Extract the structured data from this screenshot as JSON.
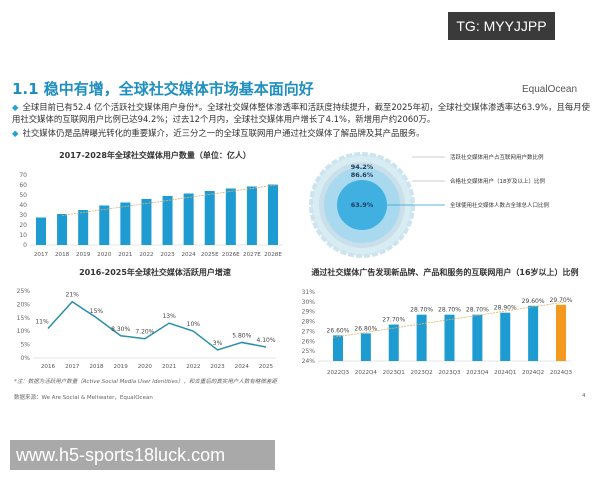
{
  "watermark_top": "TG: MYYJJPP",
  "title": "1.1 稳中有增，全球社交媒体市场基本面向好",
  "logo": "EqualOcean",
  "bullets": [
    "全球目前已有52.4 亿个活跃社交媒体用户身份*。全球社交媒体整体渗透率和活跃度持续提升，截至2025年初，全球社交媒体渗透率达63.9%，且每月使用社交媒体的互联网用户比例已达94.2%；过去12个月内，全球社交媒体用户增长了4.1%，新增用户约2060万。",
    "社交媒体仍是品牌曝光转化的重要媒介，近三分之一的全球互联网用户通过社交媒体了解品牌及其产品服务。"
  ],
  "colors": {
    "bar": "#1e9bd0",
    "highlight": "#f39a1e",
    "line": "#2a8fa8",
    "trend": "#d9b46b",
    "title": "#1f8fbf"
  },
  "chart_data": [
    {
      "type": "bar",
      "title": "2017-2028年全球社交媒体用户数量（单位：亿人）",
      "categories": [
        "2017",
        "2018",
        "2019",
        "2020",
        "2021",
        "2022",
        "2023",
        "2024",
        "2025E",
        "2026E",
        "2027E",
        "2028E"
      ],
      "values": [
        27.5,
        31,
        35,
        39.5,
        42.5,
        46,
        49,
        51.5,
        54,
        56.5,
        58.5,
        60.5
      ],
      "ylim": [
        0,
        70
      ],
      "yticks": [
        "0",
        "10",
        "20",
        "30",
        "40",
        "50",
        "60",
        "70"
      ],
      "trendline": true
    },
    {
      "type": "line",
      "title": "2016-2025年全球社交媒体活跃用户增速",
      "categories": [
        "2016",
        "2017",
        "2018",
        "2019",
        "2020",
        "2021",
        "2022",
        "2023",
        "2024",
        "2025"
      ],
      "values": [
        11,
        21,
        15,
        8.3,
        7.2,
        13,
        10,
        3,
        5.8,
        4.1
      ],
      "labels": [
        "11%",
        "21%",
        "15%",
        "8.30%",
        "7.20%",
        "13%",
        "10%",
        "3%",
        "5.80%",
        "4.10%"
      ],
      "ylim": [
        0,
        25
      ],
      "yticks": [
        "0%",
        "5%",
        "10%",
        "15%",
        "20%",
        "25%"
      ]
    },
    {
      "type": "bar",
      "title": "通过社交媒体广告发现新品牌、产品和服务的互联网用户（16岁以上）比例",
      "categories": [
        "2022Q3",
        "2022Q4",
        "2023Q1",
        "2023Q2",
        "2023Q3",
        "2023Q4",
        "2024Q1",
        "2024Q2",
        "2024Q3"
      ],
      "values": [
        26.6,
        26.8,
        27.7,
        28.7,
        28.7,
        28.7,
        28.9,
        29.6,
        29.7
      ],
      "labels": [
        "26.60%",
        "26.80%",
        "27.70%",
        "28.70%",
        "28.70%",
        "28.70%",
        "28.90%",
        "29.60%",
        "29.70%"
      ],
      "ylim": [
        24,
        31
      ],
      "yticks": [
        "24%",
        "25%",
        "26%",
        "27%",
        "28%",
        "29%",
        "30%",
        "31%"
      ],
      "trendline": true,
      "highlighted": "2024Q3"
    },
    {
      "type": "pie",
      "series": [
        {
          "name": "活跃社交媒体用户占互联网用户数比例",
          "label": "94.2%",
          "value": 94.2
        },
        {
          "name": "合格社交媒体用户（18岁及以上）比例",
          "label": "86.6%",
          "value": 86.6
        },
        {
          "name": "全球使用社交媒体人数占全球总人口比例",
          "label": "63.9%",
          "value": 63.9
        }
      ]
    }
  ],
  "note": "*注：数据为活跃用户数量（Active Social Media User Identities），和去重后的真实用户人数有略微差距",
  "source": "数据来源：We Are Social & Meltwater，EqualOcean",
  "page": "4",
  "watermark_bottom": "www.h5-sports18luck.com"
}
